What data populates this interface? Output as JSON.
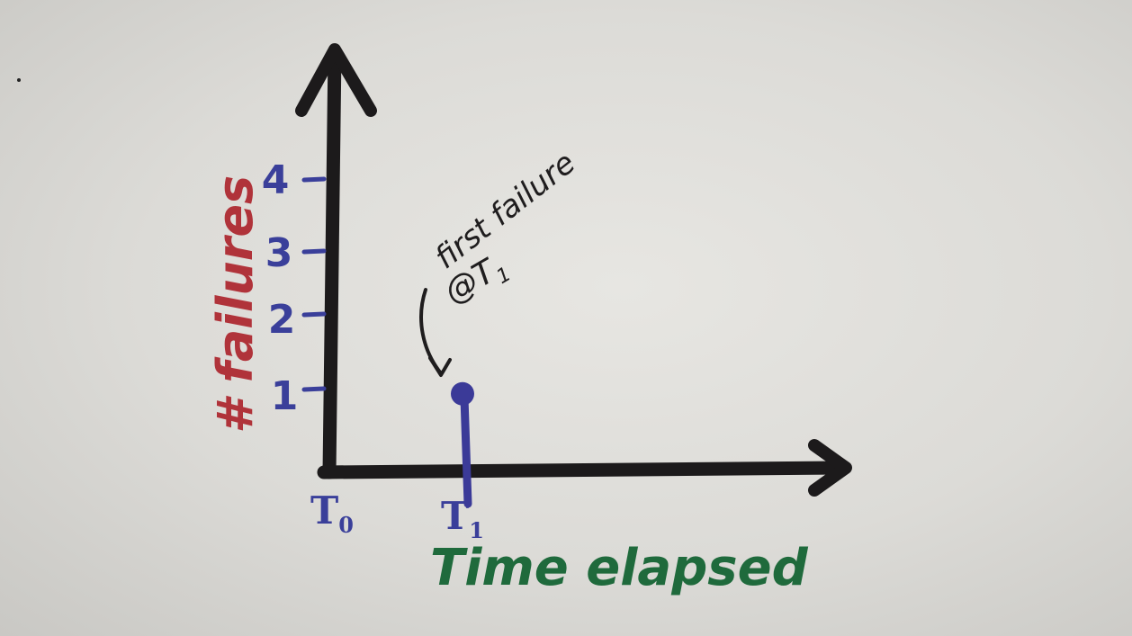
{
  "chart_data": {
    "type": "scatter",
    "style": "hand-drawn stem plot",
    "xlabel": "Time elapsed",
    "ylabel": "# failures",
    "x_ticks": [
      {
        "label": "T",
        "sub": "0"
      },
      {
        "label": "T",
        "sub": "1"
      }
    ],
    "y_ticks": [
      "1",
      "2",
      "3",
      "4"
    ],
    "ylim": [
      0,
      4
    ],
    "points": [
      {
        "x": "T1",
        "y": 1
      }
    ],
    "annotation": {
      "line1": "first failure",
      "line2_prefix": "@T",
      "line2_sub": "1"
    },
    "grid": false,
    "colors": {
      "axes": "#1c1a1b",
      "ticks": "#3a3f9a",
      "point": "#3b3a98",
      "xlabel": "#1f6a3c",
      "ylabel": "#b0333a",
      "annotation": "#1f1d1e"
    }
  }
}
